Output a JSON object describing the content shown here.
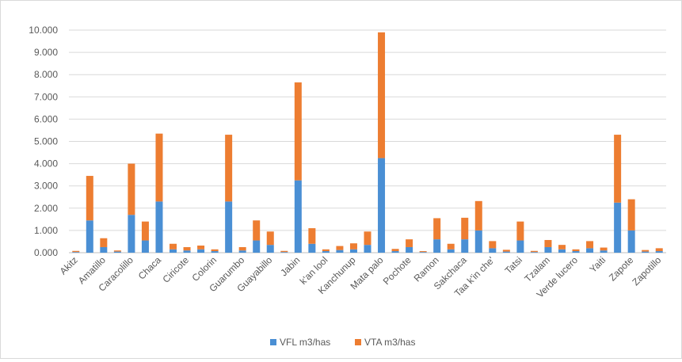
{
  "chart_data": {
    "type": "bar",
    "stacked": true,
    "categories": [
      "Akitz",
      "",
      "Amatillo",
      "",
      "Caracolillo",
      "",
      "Chaca",
      "",
      "Ciricote",
      "",
      "Colorin",
      "",
      "Guarumbo",
      "",
      "Guayabillo",
      "",
      "Jabin",
      "",
      "k'an lool",
      "",
      "Kanchunup",
      "",
      "Mata palo",
      "",
      "Pochote",
      "",
      "Ramon",
      "",
      "Sakchaca",
      "",
      "Taa k'in che'",
      "",
      "Tatsi",
      "",
      "Tzalam",
      "",
      "Verde lucero",
      "",
      "Yaiti",
      "",
      "Zapote",
      "",
      "Zapotillo"
    ],
    "series": [
      {
        "name": "VFL m3/has",
        "color": "#4a8fd4",
        "values": [
          0.03,
          1.45,
          0.25,
          0.05,
          1.7,
          0.55,
          2.3,
          0.15,
          0.1,
          0.15,
          0.07,
          2.3,
          0.1,
          0.55,
          0.35,
          0.03,
          3.25,
          0.4,
          0.07,
          0.12,
          0.15,
          0.35,
          4.25,
          0.07,
          0.25,
          0.03,
          0.6,
          0.15,
          0.6,
          1.0,
          0.2,
          0.05,
          0.55,
          0.03,
          0.25,
          0.15,
          0.07,
          0.2,
          0.1,
          2.25,
          1.0,
          0.05,
          0.07
        ]
      },
      {
        "name": "VTA m3/has",
        "color": "#ed7d31",
        "values": [
          0.05,
          2.0,
          0.4,
          0.05,
          2.3,
          0.85,
          3.05,
          0.25,
          0.15,
          0.17,
          0.08,
          3.0,
          0.15,
          0.9,
          0.6,
          0.05,
          4.4,
          0.7,
          0.08,
          0.18,
          0.27,
          0.6,
          5.65,
          0.1,
          0.35,
          0.04,
          0.95,
          0.25,
          0.97,
          1.32,
          0.32,
          0.08,
          0.85,
          0.05,
          0.32,
          0.2,
          0.08,
          0.32,
          0.13,
          3.05,
          1.4,
          0.07,
          0.13
        ]
      }
    ],
    "ylim": [
      0,
      10
    ],
    "yticks": [
      "0.000",
      "1.000",
      "2.000",
      "3.000",
      "4.000",
      "5.000",
      "6.000",
      "7.000",
      "8.000",
      "9.000",
      "10.000"
    ],
    "grid": true,
    "legend": "bottom"
  }
}
